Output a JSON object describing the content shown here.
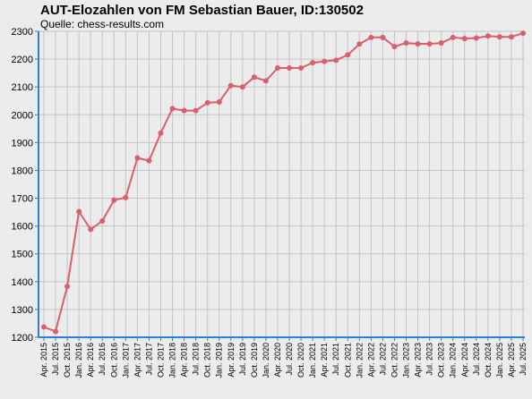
{
  "chart_data": {
    "type": "line",
    "title": "AUT-Elozahlen von FM Sebastian Bauer, ID:130502",
    "subtitle": "Quelle: chess-results.com",
    "xlabel": "",
    "ylabel": "",
    "ylim": [
      1200,
      2300
    ],
    "yticks": [
      1200,
      1300,
      1400,
      1500,
      1600,
      1700,
      1800,
      1900,
      2000,
      2100,
      2200,
      2300
    ],
    "grid": true,
    "categories": [
      "Apr. 2015",
      "Jul. 2015",
      "Oct. 2015",
      "Jan. 2016",
      "Apr. 2016",
      "Jul. 2016",
      "Oct. 2016",
      "Jan. 2017",
      "Apr. 2017",
      "Jul. 2017",
      "Oct. 2017",
      "Jan. 2018",
      "Apr. 2018",
      "Jul. 2018",
      "Oct. 2018",
      "Jan. 2019",
      "Apr. 2019",
      "Jul. 2019",
      "Oct. 2019",
      "Jan. 2020",
      "Apr. 2020",
      "Jul. 2020",
      "Oct. 2020",
      "Jan. 2021",
      "Apr. 2021",
      "Jul. 2021",
      "Oct. 2021",
      "Jan. 2022",
      "Apr. 2022",
      "Jul. 2022",
      "Oct. 2022",
      "Jan. 2023",
      "Apr. 2023",
      "Jul. 2023",
      "Oct. 2023",
      "Jan. 2024",
      "Apr. 2024",
      "Jul. 2024",
      "Oct. 2024",
      "Jan. 2025",
      "Apr. 2025",
      "Jul. 2025"
    ],
    "series": [
      {
        "values": [
          1237,
          1221,
          1383,
          1652,
          1588,
          1618,
          1693,
          1702,
          1845,
          1835,
          1934,
          2022,
          2015,
          2015,
          2043,
          2046,
          2105,
          2100,
          2135,
          2122,
          2168,
          2168,
          2168,
          2187,
          2192,
          2196,
          2215,
          2254,
          2278,
          2278,
          2245,
          2258,
          2255,
          2255,
          2258,
          2278,
          2274,
          2276,
          2283,
          2280,
          2280,
          2293
        ],
        "color": "#d9606a"
      }
    ],
    "colors": {
      "background": "#ececec",
      "grid": "#c4c4c4",
      "axis": "#2e7fd8",
      "line": "#d9606a"
    }
  }
}
